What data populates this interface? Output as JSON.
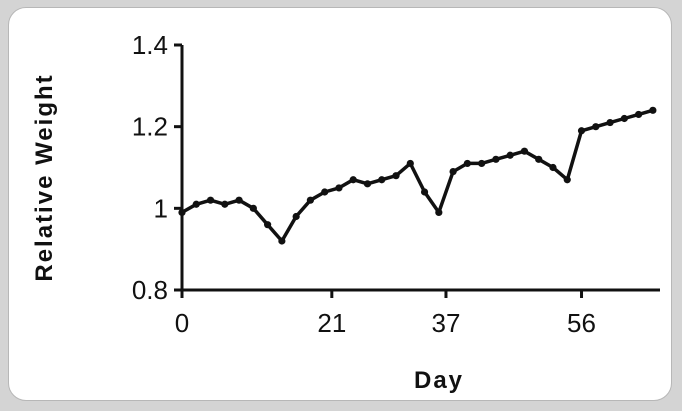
{
  "chart_data": {
    "type": "line",
    "title": "",
    "xlabel": "Day",
    "ylabel": "Relative Weight",
    "xlim": [
      0,
      67
    ],
    "ylim": [
      0.8,
      1.4
    ],
    "xticks": [
      0,
      21,
      37,
      56
    ],
    "xtick_labels": [
      "0",
      "21",
      "37",
      "56"
    ],
    "yticks": [
      0.8,
      1.0,
      1.2,
      1.4
    ],
    "ytick_labels": [
      "0.8",
      "1",
      "1.2",
      "1.4"
    ],
    "grid": false,
    "series": [
      {
        "color": "#111111",
        "marker": "circle",
        "x": [
          0,
          2,
          4,
          6,
          8,
          10,
          12,
          14,
          16,
          18,
          20,
          22,
          24,
          26,
          28,
          30,
          32,
          34,
          36,
          38,
          40,
          42,
          44,
          46,
          48,
          50,
          52,
          54,
          56,
          58,
          60,
          62,
          64,
          66
        ],
        "y": [
          0.99,
          1.01,
          1.02,
          1.01,
          1.02,
          1.0,
          0.96,
          0.92,
          0.98,
          1.02,
          1.04,
          1.05,
          1.07,
          1.06,
          1.07,
          1.08,
          1.11,
          1.04,
          0.99,
          1.09,
          1.11,
          1.11,
          1.12,
          1.13,
          1.14,
          1.12,
          1.1,
          1.07,
          1.19,
          1.2,
          1.21,
          1.22,
          1.23,
          1.24
        ]
      }
    ]
  }
}
